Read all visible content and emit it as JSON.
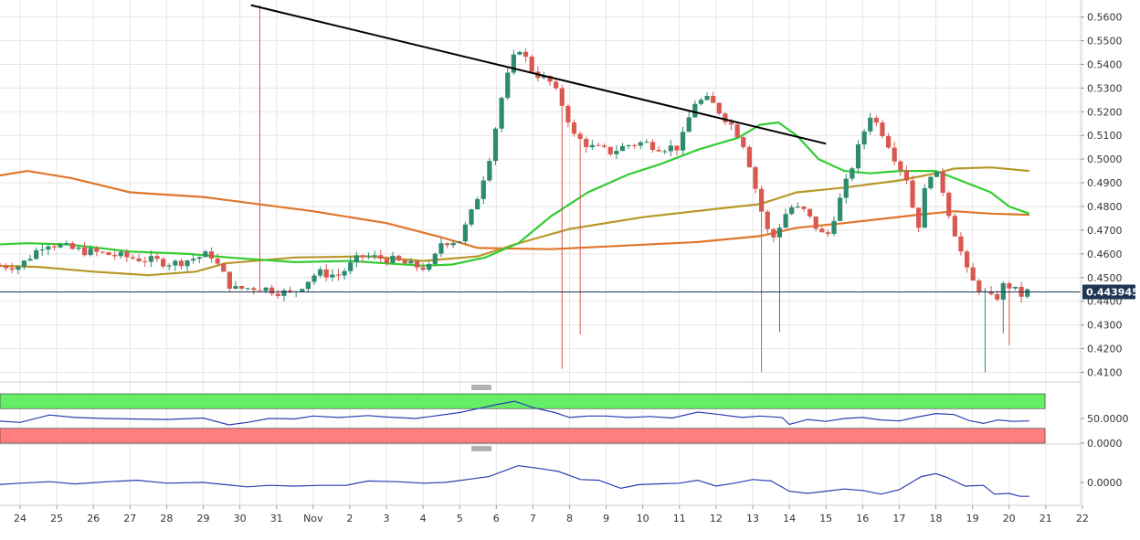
{
  "colors": {
    "up_candle": "#2e8b6f",
    "down_candle": "#d9584f",
    "ma_green": "#33cc33",
    "ma_olive": "#b8982a",
    "ma_orange": "#e0762a",
    "trendline": "#000000",
    "oscillator": "#2a3eb1",
    "overbought_zone": "#66ee66",
    "oversold_zone": "#ff7f7f",
    "price_label_bg": "#1f3552",
    "grid": "#e6e6e6"
  },
  "chart_data": [
    {
      "type": "candlestick",
      "title": "",
      "x_ticks": [
        "24",
        "25",
        "26",
        "27",
        "28",
        "29",
        "30",
        "31",
        "Nov",
        "2",
        "3",
        "4",
        "5",
        "6",
        "7",
        "8",
        "9",
        "10",
        "11",
        "12",
        "13",
        "14",
        "15",
        "16",
        "17",
        "18",
        "19",
        "20",
        "21",
        "22"
      ],
      "ylim": [
        0.408,
        0.566
      ],
      "y_ticks": [
        0.41,
        0.42,
        0.43,
        0.44,
        0.45,
        0.46,
        0.47,
        0.48,
        0.49,
        0.5,
        0.51,
        0.52,
        0.53,
        0.54,
        0.55,
        0.56
      ],
      "y_tick_labels": [
        "0.4100",
        "0.4200",
        "0.4300",
        "0.4400",
        "0.4500",
        "0.4600",
        "0.4700",
        "0.4800",
        "0.4900",
        "0.5000",
        "0.5100",
        "0.5200",
        "0.5300",
        "0.5400",
        "0.5500",
        "0.5600"
      ],
      "last_price": 0.443945,
      "last_price_label": "0.443945",
      "trendline": {
        "from": [
          6.3,
          0.565
        ],
        "to": [
          22.0,
          0.5065
        ]
      },
      "candle_anchors": [
        [
          0.0,
          0.455
        ],
        [
          0.7,
          0.465
        ],
        [
          1.4,
          0.462
        ],
        [
          2.3,
          0.46
        ],
        [
          3.2,
          0.458
        ],
        [
          4.2,
          0.456
        ],
        [
          5.2,
          0.46
        ],
        [
          5.8,
          0.445
        ],
        [
          6.5,
          0.446
        ],
        [
          7.4,
          0.443
        ],
        [
          8.1,
          0.452
        ],
        [
          8.7,
          0.451
        ],
        [
          9.3,
          0.459
        ],
        [
          10.0,
          0.458
        ],
        [
          10.7,
          0.455
        ],
        [
          11.2,
          0.454
        ],
        [
          11.5,
          0.465
        ],
        [
          12.0,
          0.466
        ],
        [
          12.4,
          0.48
        ],
        [
          12.8,
          0.5
        ],
        [
          13.2,
          0.53
        ],
        [
          13.6,
          0.548
        ],
        [
          14.0,
          0.537
        ],
        [
          14.5,
          0.532
        ],
        [
          14.9,
          0.52
        ],
        [
          15.1,
          0.51
        ],
        [
          15.6,
          0.505
        ],
        [
          16.1,
          0.503
        ],
        [
          16.6,
          0.506
        ],
        [
          17.0,
          0.507
        ],
        [
          17.5,
          0.505
        ],
        [
          18.0,
          0.505
        ],
        [
          18.4,
          0.524
        ],
        [
          18.8,
          0.525
        ],
        [
          19.1,
          0.52
        ],
        [
          19.5,
          0.513
        ],
        [
          19.8,
          0.505
        ],
        [
          20.2,
          0.48
        ],
        [
          20.5,
          0.465
        ],
        [
          21.0,
          0.48
        ],
        [
          21.4,
          0.478
        ],
        [
          21.8,
          0.47
        ],
        [
          22.0,
          0.466
        ],
        [
          22.2,
          0.475
        ],
        [
          22.6,
          0.492
        ],
        [
          23.0,
          0.51
        ],
        [
          23.2,
          0.519
        ],
        [
          23.6,
          0.51
        ],
        [
          23.9,
          0.5
        ],
        [
          24.2,
          0.492
        ],
        [
          24.5,
          0.47
        ],
        [
          24.8,
          0.495
        ],
        [
          25.1,
          0.492
        ],
        [
          25.4,
          0.475
        ],
        [
          25.7,
          0.46
        ],
        [
          25.9,
          0.45
        ],
        [
          26.2,
          0.445
        ],
        [
          26.6,
          0.44
        ],
        [
          26.9,
          0.448
        ],
        [
          27.1,
          0.445
        ],
        [
          27.4,
          0.442
        ],
        [
          27.55,
          0.445
        ]
      ],
      "moving_averages": [
        {
          "color_key": "ma_orange",
          "points": [
            [
              -0.6,
              0.493
            ],
            [
              0.2,
              0.495
            ],
            [
              1.4,
              0.492
            ],
            [
              3.0,
              0.486
            ],
            [
              5.0,
              0.484
            ],
            [
              8.0,
              0.478
            ],
            [
              10.0,
              0.473
            ],
            [
              11.5,
              0.467
            ],
            [
              12.5,
              0.4625
            ],
            [
              14.5,
              0.462
            ],
            [
              16.5,
              0.4635
            ],
            [
              18.5,
              0.465
            ],
            [
              20.2,
              0.4675
            ],
            [
              21.2,
              0.471
            ],
            [
              22.5,
              0.473
            ],
            [
              24.5,
              0.4765
            ],
            [
              25.5,
              0.478
            ],
            [
              26.5,
              0.477
            ],
            [
              27.55,
              0.4765
            ]
          ]
        },
        {
          "color_key": "ma_olive",
          "points": [
            [
              -0.6,
              0.455
            ],
            [
              0.5,
              0.4545
            ],
            [
              2.0,
              0.4525
            ],
            [
              3.5,
              0.451
            ],
            [
              4.8,
              0.4525
            ],
            [
              5.6,
              0.456
            ],
            [
              7.5,
              0.4585
            ],
            [
              9.5,
              0.459
            ],
            [
              11.0,
              0.457
            ],
            [
              12.5,
              0.459
            ],
            [
              13.5,
              0.464
            ],
            [
              15.0,
              0.4705
            ],
            [
              17.0,
              0.4755
            ],
            [
              19.0,
              0.479
            ],
            [
              20.2,
              0.481
            ],
            [
              21.2,
              0.486
            ],
            [
              22.5,
              0.488
            ],
            [
              24.0,
              0.491
            ],
            [
              25.0,
              0.494
            ],
            [
              25.5,
              0.496
            ],
            [
              26.5,
              0.4965
            ],
            [
              27.55,
              0.495
            ]
          ]
        },
        {
          "color_key": "ma_green",
          "points": [
            [
              -0.6,
              0.464
            ],
            [
              0.2,
              0.4645
            ],
            [
              1.3,
              0.464
            ],
            [
              3.0,
              0.461
            ],
            [
              4.6,
              0.46
            ],
            [
              5.7,
              0.4585
            ],
            [
              7.5,
              0.4565
            ],
            [
              9.0,
              0.457
            ],
            [
              11.0,
              0.455
            ],
            [
              11.8,
              0.4555
            ],
            [
              12.7,
              0.4585
            ],
            [
              13.6,
              0.4645
            ],
            [
              14.5,
              0.476
            ],
            [
              15.5,
              0.486
            ],
            [
              16.6,
              0.4935
            ],
            [
              17.5,
              0.498
            ],
            [
              18.5,
              0.504
            ],
            [
              19.6,
              0.509
            ],
            [
              20.2,
              0.5145
            ],
            [
              20.7,
              0.5155
            ],
            [
              21.2,
              0.51
            ],
            [
              21.8,
              0.5
            ],
            [
              22.5,
              0.495
            ],
            [
              23.2,
              0.494
            ],
            [
              24.0,
              0.495
            ],
            [
              25.0,
              0.495
            ],
            [
              25.5,
              0.492
            ],
            [
              26.5,
              0.486
            ],
            [
              27.0,
              0.48
            ],
            [
              27.55,
              0.477
            ]
          ]
        }
      ]
    },
    {
      "type": "line",
      "title": "",
      "y_ticks": [
        50,
        0
      ],
      "y_tick_labels": [
        "50.0000",
        "0.0000"
      ],
      "zones": [
        {
          "from": 70,
          "to": 100,
          "color_key": "overbought_zone"
        },
        {
          "from": 0,
          "to": 30,
          "color_key": "oversold_zone"
        }
      ],
      "ylim": [
        0,
        100
      ],
      "series_points": [
        [
          -0.6,
          45
        ],
        [
          0.0,
          42
        ],
        [
          0.8,
          57
        ],
        [
          1.5,
          52
        ],
        [
          2.3,
          50
        ],
        [
          3.0,
          49
        ],
        [
          4.0,
          48
        ],
        [
          5.0,
          51
        ],
        [
          5.7,
          37
        ],
        [
          6.2,
          42
        ],
        [
          6.8,
          50
        ],
        [
          7.5,
          49
        ],
        [
          8.0,
          55
        ],
        [
          8.7,
          52
        ],
        [
          9.5,
          56
        ],
        [
          10.0,
          53
        ],
        [
          10.8,
          50
        ],
        [
          11.3,
          55
        ],
        [
          12.0,
          62
        ],
        [
          12.5,
          70
        ],
        [
          13.0,
          78
        ],
        [
          13.5,
          85
        ],
        [
          14.0,
          72
        ],
        [
          14.6,
          62
        ],
        [
          15.0,
          52
        ],
        [
          15.5,
          55
        ],
        [
          16.0,
          55
        ],
        [
          16.6,
          52
        ],
        [
          17.2,
          54
        ],
        [
          17.8,
          51
        ],
        [
          18.5,
          63
        ],
        [
          19.1,
          58
        ],
        [
          19.7,
          52
        ],
        [
          20.2,
          55
        ],
        [
          20.8,
          52
        ],
        [
          21.0,
          38
        ],
        [
          21.5,
          48
        ],
        [
          22.0,
          44
        ],
        [
          22.5,
          50
        ],
        [
          23.0,
          52
        ],
        [
          23.5,
          47
        ],
        [
          24.0,
          45
        ],
        [
          24.5,
          53
        ],
        [
          25.0,
          60
        ],
        [
          25.5,
          58
        ],
        [
          25.9,
          46
        ],
        [
          26.3,
          40
        ],
        [
          26.7,
          47
        ],
        [
          27.1,
          44
        ],
        [
          27.55,
          45
        ]
      ]
    },
    {
      "type": "line",
      "title": "",
      "y_ticks": [
        0
      ],
      "y_tick_labels": [
        "0.0000"
      ],
      "ylim": [
        -0.015,
        0.02
      ],
      "series_points": [
        [
          -0.6,
          -0.0015
        ],
        [
          0.0,
          -0.0005
        ],
        [
          0.8,
          0.0005
        ],
        [
          1.5,
          -0.001
        ],
        [
          2.4,
          0.0005
        ],
        [
          3.2,
          0.0015
        ],
        [
          4.0,
          -0.0005
        ],
        [
          5.0,
          0.0
        ],
        [
          5.6,
          -0.0015
        ],
        [
          6.2,
          -0.003
        ],
        [
          6.8,
          -0.002
        ],
        [
          7.5,
          -0.0025
        ],
        [
          8.2,
          -0.002
        ],
        [
          8.9,
          -0.002
        ],
        [
          9.5,
          0.001
        ],
        [
          10.3,
          0.0005
        ],
        [
          11.0,
          -0.0005
        ],
        [
          11.6,
          0.0
        ],
        [
          12.2,
          0.002
        ],
        [
          12.8,
          0.004
        ],
        [
          13.6,
          0.0115
        ],
        [
          14.2,
          0.0095
        ],
        [
          14.7,
          0.0075
        ],
        [
          15.3,
          0.002
        ],
        [
          15.8,
          0.0015
        ],
        [
          16.4,
          -0.004
        ],
        [
          16.9,
          -0.0015
        ],
        [
          17.4,
          -0.001
        ],
        [
          18.0,
          -0.0005
        ],
        [
          18.5,
          0.0015
        ],
        [
          19.0,
          -0.0025
        ],
        [
          19.5,
          -0.0005
        ],
        [
          20.0,
          0.002
        ],
        [
          20.5,
          0.001
        ],
        [
          21.0,
          -0.006
        ],
        [
          21.5,
          -0.0075
        ],
        [
          22.0,
          -0.006
        ],
        [
          22.5,
          -0.0045
        ],
        [
          23.0,
          -0.0055
        ],
        [
          23.5,
          -0.008
        ],
        [
          24.0,
          -0.005
        ],
        [
          24.6,
          0.004
        ],
        [
          25.0,
          0.006
        ],
        [
          25.3,
          0.0035
        ],
        [
          25.8,
          -0.0025
        ],
        [
          26.3,
          -0.002
        ],
        [
          26.6,
          -0.008
        ],
        [
          27.0,
          -0.0075
        ],
        [
          27.3,
          -0.0095
        ],
        [
          27.55,
          -0.0095
        ]
      ]
    }
  ]
}
